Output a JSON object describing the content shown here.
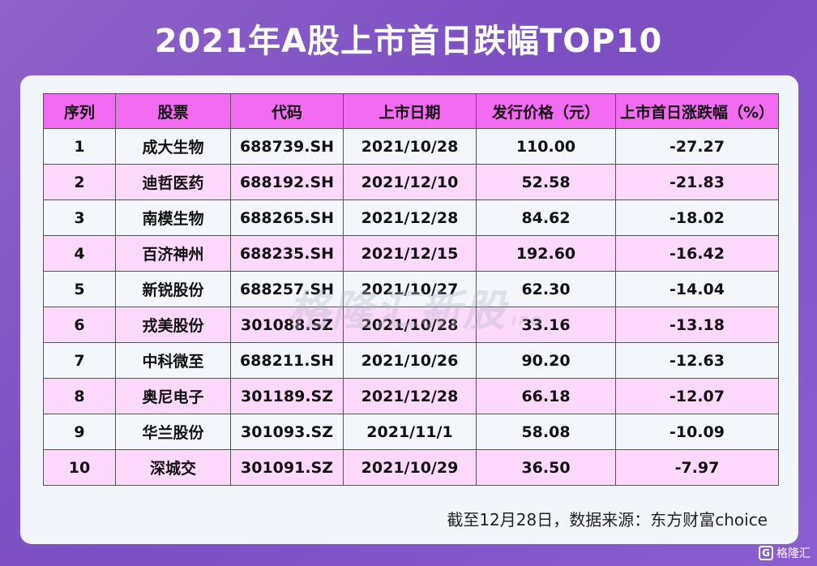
{
  "title": "2021年A股上市首日跌幅TOP10",
  "table": {
    "headers": [
      "序列",
      "股票",
      "代码",
      "上市日期",
      "发行价格（元）",
      "上市首日涨跌幅（%）"
    ],
    "rows": [
      [
        "1",
        "成大生物",
        "688739.SH",
        "2021/10/28",
        "110.00",
        "-27.27"
      ],
      [
        "2",
        "迪哲医药",
        "688192.SH",
        "2021/12/10",
        "52.58",
        "-21.83"
      ],
      [
        "3",
        "南模生物",
        "688265.SH",
        "2021/12/28",
        "84.62",
        "-18.02"
      ],
      [
        "4",
        "百济神州",
        "688235.SH",
        "2021/12/15",
        "192.60",
        "-16.42"
      ],
      [
        "5",
        "新锐股份",
        "688257.SH",
        "2021/10/27",
        "62.30",
        "-14.04"
      ],
      [
        "6",
        "戎美股份",
        "301088.SZ",
        "2021/10/28",
        "33.16",
        "-13.18"
      ],
      [
        "7",
        "中科微至",
        "688211.SH",
        "2021/10/26",
        "90.20",
        "-12.63"
      ],
      [
        "8",
        "奥尼电子",
        "301189.SZ",
        "2021/12/28",
        "66.18",
        "-12.07"
      ],
      [
        "9",
        "华兰股份",
        "301093.SZ",
        "2021/11/1",
        "58.08",
        "-10.09"
      ],
      [
        "10",
        "深城交",
        "301091.SZ",
        "2021/10/29",
        "36.50",
        "-7.97"
      ]
    ]
  },
  "watermark": {
    "text": "格隆汇新股",
    "sub": "IPO"
  },
  "footnote": "截至12月28日，数据来源：东方财富choice",
  "logo": {
    "mark": "G",
    "text": "格隆汇"
  },
  "colors": {
    "header_bg": "#f36bf0",
    "even_row_bg": "#fcd8fa",
    "odd_row_bg": "#f3f6fb",
    "page_bg": "#7b4fc2"
  }
}
